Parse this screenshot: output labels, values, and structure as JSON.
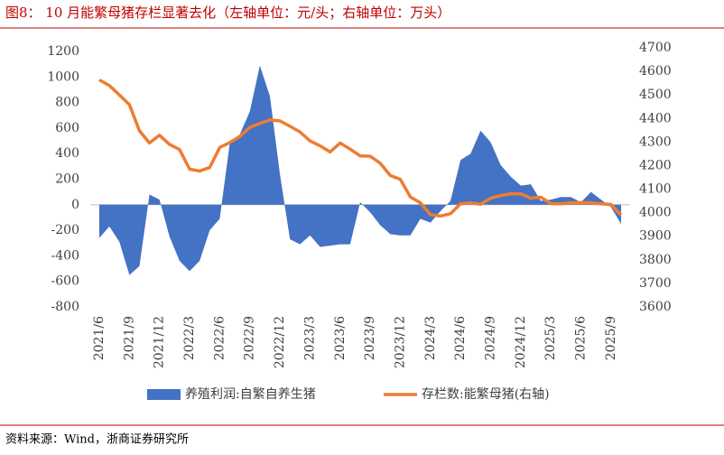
{
  "chart_data": {
    "type": "combo",
    "title": "图8：  10 月能繁母猪存栏显著去化（左轴单位：元/头；右轴单位：万头）",
    "source": "资料来源：Wind，浙商证券研究所",
    "categories": [
      "2021/6",
      null,
      null,
      "2021/9",
      null,
      null,
      "2021/12",
      null,
      null,
      "2022/3",
      null,
      null,
      "2022/6",
      null,
      null,
      "2022/9",
      null,
      null,
      "2022/12",
      null,
      null,
      "2023/3",
      null,
      null,
      "2023/6",
      null,
      null,
      "2023/9",
      null,
      null,
      "2023/12",
      null,
      null,
      "2024/3",
      null,
      null,
      "2024/6",
      null,
      null,
      "2024/9",
      null,
      null,
      "2024/12",
      null,
      null,
      "2025/3",
      null,
      null,
      "2025/6",
      null,
      null,
      "2025/9",
      null
    ],
    "series": [
      {
        "name": "养殖利润:自繁自养生猪",
        "type": "area",
        "color": "#4472c4",
        "values": [
          -260,
          -170,
          -290,
          -550,
          -480,
          80,
          40,
          -250,
          -440,
          -520,
          -440,
          -200,
          -110,
          480,
          550,
          730,
          1090,
          850,
          240,
          -270,
          -310,
          -240,
          -330,
          -320,
          -310,
          -310,
          20,
          -60,
          -160,
          -230,
          -240,
          -240,
          -110,
          -140,
          -50,
          30,
          350,
          400,
          580,
          490,
          310,
          220,
          150,
          160,
          30,
          40,
          60,
          60,
          20,
          100,
          40,
          -20,
          -150
        ]
      },
      {
        "name": "存栏数:能繁母猪(右轴)",
        "type": "line",
        "axis": "y2",
        "color": "#ed7d31",
        "values": [
          4564,
          4540,
          4500,
          4459,
          4348,
          4296,
          4329,
          4290,
          4268,
          4185,
          4177,
          4192,
          4277,
          4298,
          4324,
          4362,
          4379,
          4394,
          4390,
          4367,
          4343,
          4305,
          4284,
          4258,
          4296,
          4270,
          4241,
          4240,
          4210,
          4158,
          4142,
          4067,
          4042,
          3992,
          3986,
          3996,
          4038,
          4042,
          4036,
          4062,
          4073,
          4080,
          4080,
          4062,
          4066,
          4039,
          4038,
          4042,
          4043,
          4042,
          4038,
          4035,
          3990
        ]
      }
    ],
    "ylim": [
      -800,
      1200
    ],
    "yticks": [
      -800,
      -600,
      -400,
      -200,
      0,
      200,
      400,
      600,
      800,
      1000,
      1200
    ],
    "y2lim": [
      3600,
      4700
    ],
    "y2ticks": [
      3600,
      3700,
      3800,
      3900,
      4000,
      4100,
      4200,
      4300,
      4400,
      4500,
      4600,
      4700
    ]
  }
}
